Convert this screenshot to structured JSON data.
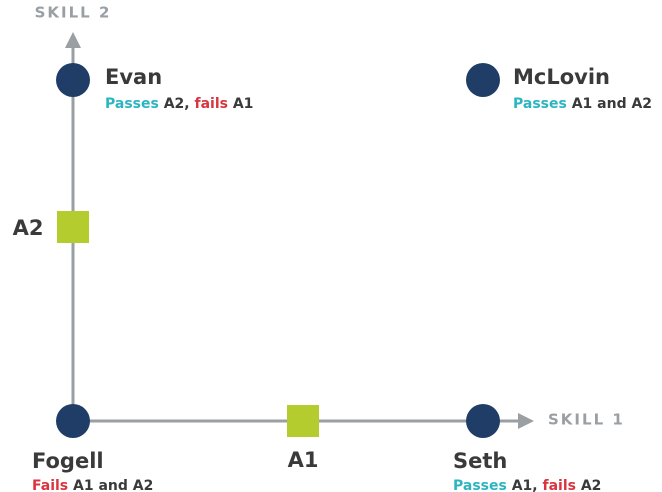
{
  "axes": {
    "y_label": "SKILL 2",
    "x_label": "SKILL 1"
  },
  "markers": [
    {
      "label": "A2"
    },
    {
      "label": "A1"
    }
  ],
  "nodes": [
    {
      "name": "Evan",
      "description": [
        {
          "text": "Passes",
          "color": "#2bb5c0"
        },
        {
          "text": " A2, ",
          "color": "#3a3a3a"
        },
        {
          "text": "fails",
          "color": "#d9353f"
        },
        {
          "text": " A1",
          "color": "#3a3a3a"
        }
      ]
    },
    {
      "name": "McLovin",
      "description": [
        {
          "text": "Passes",
          "color": "#2bb5c0"
        },
        {
          "text": " A1 and A2",
          "color": "#3a3a3a"
        }
      ]
    },
    {
      "name": "Fogell",
      "description": [
        {
          "text": "Fails",
          "color": "#d9353f"
        },
        {
          "text": " A1 and A2",
          "color": "#3a3a3a"
        }
      ]
    },
    {
      "name": "Seth",
      "description": [
        {
          "text": "Passes",
          "color": "#2bb5c0"
        },
        {
          "text": " A1, ",
          "color": "#3a3a3a"
        },
        {
          "text": "fails",
          "color": "#d9353f"
        },
        {
          "text": " A2",
          "color": "#3a3a3a"
        }
      ]
    }
  ]
}
